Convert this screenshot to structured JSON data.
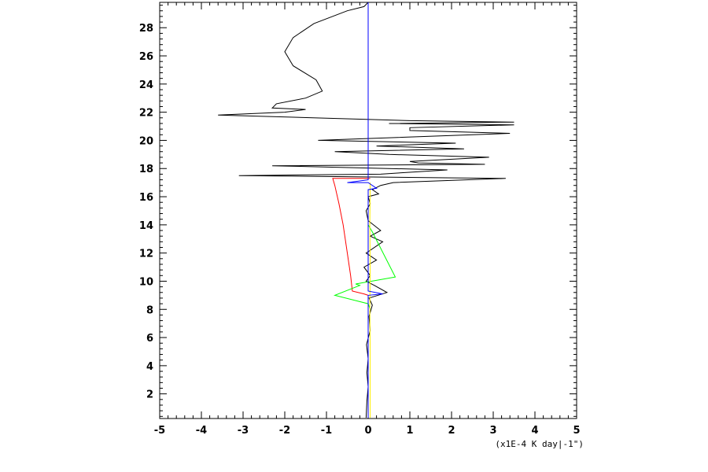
{
  "chart_data": {
    "type": "line",
    "title": "",
    "xlabel": "(x1E-4 K day|-1\")",
    "ylabel": "",
    "xlim": [
      -5,
      5
    ],
    "ylim": [
      0.25,
      29.8
    ],
    "x_ticks": [
      "-5",
      "-4",
      "-3",
      "-2",
      "-1",
      "0",
      "1",
      "2",
      "3",
      "4",
      "5"
    ],
    "y_ticks": [
      "2",
      "4",
      "6",
      "8",
      "10",
      "12",
      "14",
      "16",
      "18",
      "20",
      "22",
      "24",
      "26",
      "28"
    ],
    "grid": false,
    "series": [
      {
        "color": "#000000",
        "points": [
          [
            -0.05,
            0.3
          ],
          [
            -0.03,
            1.5
          ],
          [
            0.0,
            2.5
          ],
          [
            -0.03,
            3.5
          ],
          [
            0.0,
            4.5
          ],
          [
            -0.04,
            5.5
          ],
          [
            0.05,
            6.5
          ],
          [
            0.02,
            7.5
          ],
          [
            0.1,
            8.3
          ],
          [
            0.02,
            8.8
          ],
          [
            0.45,
            9.2
          ],
          [
            0.15,
            9.7
          ],
          [
            -0.05,
            10.0
          ],
          [
            0.05,
            10.4
          ],
          [
            -0.1,
            11.0
          ],
          [
            0.2,
            11.5
          ],
          [
            -0.05,
            12.0
          ],
          [
            0.35,
            12.8
          ],
          [
            0.05,
            13.2
          ],
          [
            0.3,
            13.6
          ],
          [
            0.0,
            14.3
          ],
          [
            -0.05,
            15.0
          ],
          [
            0.05,
            15.5
          ],
          [
            0.0,
            16.0
          ],
          [
            0.25,
            16.2
          ],
          [
            0.1,
            16.5
          ],
          [
            0.3,
            16.8
          ],
          [
            0.6,
            17.0
          ],
          [
            3.3,
            17.3
          ],
          [
            -3.1,
            17.5
          ],
          [
            0.3,
            17.6
          ],
          [
            0.8,
            17.7
          ],
          [
            1.9,
            17.9
          ],
          [
            -2.3,
            18.2
          ],
          [
            2.8,
            18.3
          ],
          [
            1.2,
            18.4
          ],
          [
            1.0,
            18.5
          ],
          [
            2.9,
            18.8
          ],
          [
            0.5,
            19.0
          ],
          [
            -0.8,
            19.2
          ],
          [
            2.3,
            19.4
          ],
          [
            0.2,
            19.6
          ],
          [
            2.1,
            19.8
          ],
          [
            -1.2,
            20.0
          ],
          [
            3.4,
            20.5
          ],
          [
            1.0,
            20.7
          ],
          [
            1.0,
            20.9
          ],
          [
            3.5,
            21.1
          ],
          [
            0.5,
            21.2
          ],
          [
            3.5,
            21.3
          ],
          [
            1.0,
            21.4
          ],
          [
            -3.6,
            21.8
          ],
          [
            -2.0,
            22.0
          ],
          [
            -1.5,
            22.2
          ],
          [
            -2.3,
            22.3
          ],
          [
            -2.2,
            22.6
          ],
          [
            -1.5,
            23.0
          ],
          [
            -1.1,
            23.5
          ],
          [
            -1.25,
            24.3
          ],
          [
            -1.8,
            25.3
          ],
          [
            -2.0,
            26.3
          ],
          [
            -1.8,
            27.3
          ],
          [
            -1.3,
            28.3
          ],
          [
            -0.5,
            29.2
          ],
          [
            -0.1,
            29.5
          ],
          [
            0.0,
            29.8
          ]
        ]
      },
      {
        "color": "#ff0000",
        "points": [
          [
            0.05,
            17.3
          ],
          [
            -0.85,
            17.3
          ],
          [
            -0.8,
            16.8
          ],
          [
            -0.7,
            15.5
          ],
          [
            -0.6,
            14.0
          ],
          [
            -0.5,
            12.0
          ],
          [
            -0.42,
            10.4
          ],
          [
            -0.38,
            9.3
          ],
          [
            -0.1,
            9.1
          ],
          [
            0.0,
            9.0
          ]
        ]
      },
      {
        "color": "#00ff00",
        "points": [
          [
            0.0,
            14.0
          ],
          [
            0.1,
            13.5
          ],
          [
            0.65,
            10.3
          ],
          [
            -0.3,
            9.8
          ],
          [
            -0.2,
            9.7
          ],
          [
            -0.8,
            9.0
          ],
          [
            0.0,
            8.4
          ],
          [
            0.05,
            8.0
          ]
        ]
      },
      {
        "color": "#ffee00",
        "points": [
          [
            0.05,
            0.3
          ],
          [
            0.05,
            5.0
          ],
          [
            0.04,
            8.0
          ],
          [
            0.05,
            11.0
          ],
          [
            0.04,
            14.0
          ],
          [
            0.05,
            17.0
          ]
        ]
      },
      {
        "color": "#0000ff",
        "points": [
          [
            0.0,
            0.3
          ],
          [
            0.0,
            9.0
          ],
          [
            0.35,
            9.1
          ],
          [
            0.0,
            9.3
          ],
          [
            0.0,
            16.5
          ],
          [
            0.2,
            16.6
          ],
          [
            0.0,
            17.0
          ],
          [
            -0.5,
            17.0
          ],
          [
            0.0,
            17.2
          ],
          [
            0.0,
            29.8
          ]
        ]
      }
    ]
  }
}
